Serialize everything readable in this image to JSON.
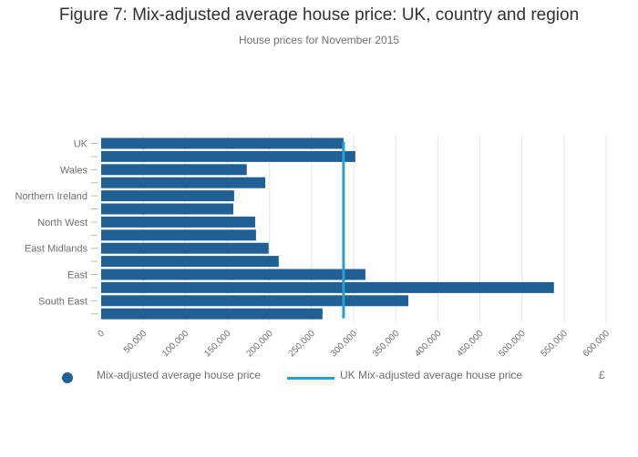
{
  "figure": {
    "title": "Figure 7: Mix-adjusted average house price: UK, country and region",
    "subtitle": "House prices for November 2015",
    "unit_label": "£"
  },
  "legend": {
    "bar_label": "Mix-adjusted average house price",
    "line_label": "UK Mix-adjusted average house price"
  },
  "colors": {
    "bar": "#206095",
    "reference_line": "#27a0cc",
    "grid": "#e6e6e6",
    "text": "#707070"
  },
  "chart_data": {
    "type": "bar",
    "orientation": "horizontal",
    "categories": [
      "UK",
      "",
      "Wales",
      "",
      "Northern Ireland",
      "",
      "North West",
      "",
      "East Midlands",
      "",
      "East",
      "",
      "South East",
      ""
    ],
    "series": [
      {
        "name": "Mix-adjusted average house price",
        "values": [
          288000,
          302000,
          173000,
          195000,
          158000,
          157000,
          183000,
          184000,
          199000,
          211000,
          314000,
          538000,
          365000,
          263000
        ]
      }
    ],
    "reference_line": {
      "name": "UK Mix-adjusted average house price",
      "value": 288000
    },
    "xlim": [
      0,
      600000
    ],
    "xticks": [
      "0",
      "50,000",
      "100,000",
      "150,000",
      "200,000",
      "250,000",
      "300,000",
      "350,000",
      "400,000",
      "450,000",
      "500,000",
      "550,000",
      "600,000"
    ],
    "xlabel": "£",
    "ylabel": "",
    "grid": true,
    "legend_position": "bottom-left"
  }
}
